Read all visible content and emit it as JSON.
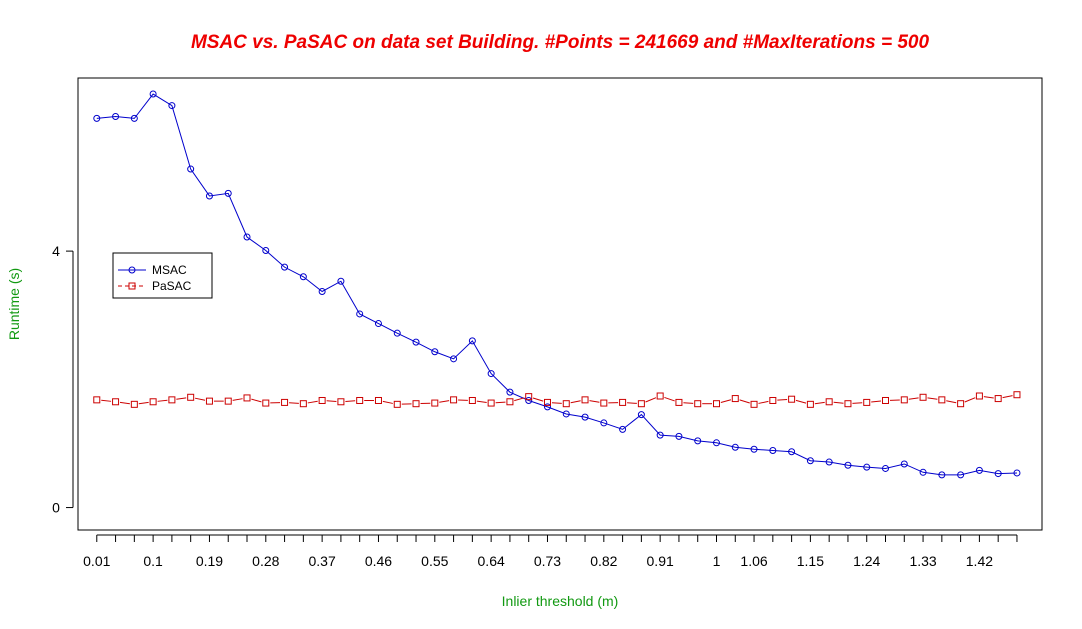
{
  "chart_data": {
    "type": "line",
    "title": "MSAC vs. PaSAC on data set Building. #Points = 241669 and #MaxIterations = 500",
    "xlabel": "Inlier threshold (m)",
    "ylabel": "Runtime (s)",
    "x": [
      0.01,
      0.04,
      0.07,
      0.1,
      0.13,
      0.16,
      0.19,
      0.22,
      0.25,
      0.28,
      0.31,
      0.34,
      0.37,
      0.4,
      0.43,
      0.46,
      0.49,
      0.52,
      0.55,
      0.58,
      0.61,
      0.64,
      0.67,
      0.7,
      0.73,
      0.76,
      0.79,
      0.82,
      0.85,
      0.88,
      0.91,
      0.94,
      0.97,
      1.0,
      1.03,
      1.06,
      1.09,
      1.12,
      1.15,
      1.18,
      1.21,
      1.24,
      1.27,
      1.3,
      1.33,
      1.36,
      1.39,
      1.42,
      1.45,
      1.48
    ],
    "x_tick_labels": [
      "0.01",
      "0.1",
      "0.19",
      "0.28",
      "0.37",
      "0.46",
      "0.55",
      "0.64",
      "0.73",
      "0.82",
      "0.91",
      "1",
      "1.06",
      "1.15",
      "1.24",
      "1.33",
      "1.42"
    ],
    "x_tick_values": [
      0.01,
      0.1,
      0.19,
      0.28,
      0.37,
      0.46,
      0.55,
      0.64,
      0.73,
      0.82,
      0.91,
      1.0,
      1.06,
      1.15,
      1.24,
      1.33,
      1.42
    ],
    "y_ticks": [
      0,
      4
    ],
    "ylim": [
      -0.35,
      6.7
    ],
    "xlim": [
      -0.02,
      1.52
    ],
    "grid": false,
    "legend_position": "left",
    "series": [
      {
        "name": "MSAC",
        "color": "#0000cc",
        "marker": "circle",
        "line_style": "solid",
        "values": [
          6.07,
          6.1,
          6.07,
          6.45,
          6.27,
          5.28,
          4.86,
          4.9,
          4.22,
          4.01,
          3.75,
          3.6,
          3.37,
          3.53,
          3.02,
          2.87,
          2.72,
          2.58,
          2.43,
          2.32,
          2.6,
          2.09,
          1.8,
          1.67,
          1.57,
          1.46,
          1.41,
          1.32,
          1.22,
          1.45,
          1.13,
          1.11,
          1.04,
          1.01,
          0.94,
          0.91,
          0.89,
          0.87,
          0.73,
          0.71,
          0.66,
          0.63,
          0.61,
          0.68,
          0.55,
          0.51,
          0.51,
          0.58,
          0.53,
          0.54
        ]
      },
      {
        "name": "PaSAC",
        "color": "#cc0000",
        "marker": "square",
        "line_style": "dashed",
        "values": [
          1.68,
          1.65,
          1.61,
          1.65,
          1.68,
          1.72,
          1.66,
          1.66,
          1.71,
          1.63,
          1.64,
          1.62,
          1.67,
          1.65,
          1.67,
          1.67,
          1.61,
          1.62,
          1.63,
          1.68,
          1.67,
          1.63,
          1.65,
          1.73,
          1.64,
          1.62,
          1.68,
          1.63,
          1.64,
          1.62,
          1.74,
          1.64,
          1.62,
          1.62,
          1.7,
          1.61,
          1.67,
          1.69,
          1.61,
          1.65,
          1.62,
          1.64,
          1.67,
          1.68,
          1.72,
          1.68,
          1.62,
          1.74,
          1.7,
          1.76
        ]
      }
    ]
  }
}
